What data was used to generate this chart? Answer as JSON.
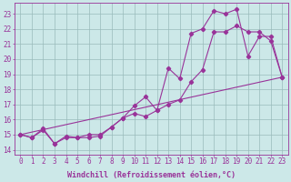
{
  "bg_color": "#cce8e8",
  "line_color": "#993399",
  "grid_color": "#99bbbb",
  "xlabel": "Windchill (Refroidissement éolien,°C)",
  "ylabel_ticks": [
    14,
    15,
    16,
    17,
    18,
    19,
    20,
    21,
    22,
    23
  ],
  "xlim": [
    -0.5,
    23.5
  ],
  "ylim": [
    13.7,
    23.7
  ],
  "xticks": [
    0,
    1,
    2,
    3,
    4,
    5,
    6,
    7,
    8,
    9,
    10,
    11,
    12,
    13,
    14,
    15,
    16,
    17,
    18,
    19,
    20,
    21,
    22,
    23
  ],
  "curve1_x": [
    0,
    1,
    2,
    3,
    4,
    5,
    6,
    7,
    8,
    9,
    10,
    11,
    12,
    13,
    14,
    15,
    16,
    17,
    18,
    19,
    20,
    21,
    22,
    23
  ],
  "curve1_y": [
    15.0,
    14.8,
    15.3,
    14.4,
    14.9,
    14.8,
    14.8,
    14.9,
    15.5,
    16.1,
    16.4,
    16.2,
    16.6,
    17.0,
    17.3,
    18.5,
    19.3,
    21.8,
    21.8,
    22.2,
    21.8,
    21.8,
    21.2,
    18.8
  ],
  "curve2_x": [
    0,
    1,
    2,
    3,
    4,
    5,
    6,
    7,
    8,
    9,
    10,
    11,
    12,
    13,
    14,
    15,
    16,
    17,
    18,
    19,
    20,
    21,
    22,
    23
  ],
  "curve2_y": [
    15.0,
    14.8,
    15.4,
    14.4,
    14.8,
    14.8,
    15.0,
    15.0,
    15.5,
    16.1,
    16.9,
    17.5,
    16.6,
    19.4,
    18.7,
    21.7,
    22.0,
    23.2,
    23.0,
    23.3,
    20.2,
    21.5,
    21.5,
    18.8
  ],
  "curve3_x": [
    0,
    23
  ],
  "curve3_y": [
    15.0,
    18.8
  ],
  "marker": "D",
  "marker_size": 2.2,
  "linewidth": 0.8,
  "xlabel_fontsize": 6.0,
  "tick_fontsize": 5.5,
  "font_family": "monospace"
}
